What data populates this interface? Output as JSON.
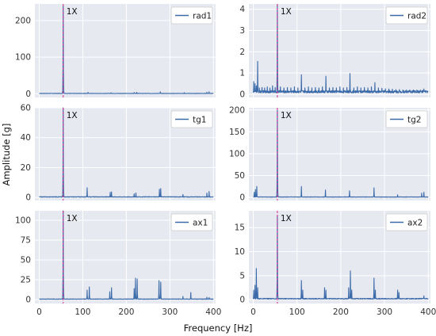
{
  "chart_data": {
    "type": "line",
    "ylabel": "Amplitude [g]",
    "xlabel": "Frequency [Hz]",
    "xlim": [
      -10,
      405
    ],
    "xticks": [
      0,
      100,
      200,
      300,
      400
    ],
    "marker": {
      "label": "1X",
      "x": 55,
      "color": "#d62b8a"
    },
    "line_color": "#3b6aa9",
    "grid": true,
    "legend_position": "top-right",
    "panels": [
      {
        "name": "rad1",
        "ylim": [
          -10,
          245
        ],
        "yticks": [
          0,
          100,
          200
        ],
        "baseline": 1.0,
        "peaks": [
          [
            55,
            240
          ],
          [
            112,
            4
          ],
          [
            165,
            3
          ],
          [
            218,
            3.5
          ],
          [
            224,
            4
          ],
          [
            278,
            5.5
          ],
          [
            333,
            3
          ],
          [
            385,
            4.5
          ],
          [
            390,
            5.5
          ]
        ]
      },
      {
        "name": "rad2",
        "ylim": [
          -0.15,
          4.25
        ],
        "yticks": [
          0,
          1,
          2,
          3,
          4
        ],
        "baseline": 0.12,
        "peaks": [
          [
            1,
            0.6
          ],
          [
            4,
            0.5
          ],
          [
            7,
            0.4
          ],
          [
            10,
            1.55
          ],
          [
            14,
            0.3
          ],
          [
            20,
            0.32
          ],
          [
            26,
            0.3
          ],
          [
            32,
            0.35
          ],
          [
            38,
            0.3
          ],
          [
            44,
            0.4
          ],
          [
            50,
            0.32
          ],
          [
            55,
            4.2
          ],
          [
            62,
            0.35
          ],
          [
            70,
            0.3
          ],
          [
            78,
            0.32
          ],
          [
            86,
            0.3
          ],
          [
            94,
            0.35
          ],
          [
            102,
            0.3
          ],
          [
            110,
            0.92
          ],
          [
            118,
            0.3
          ],
          [
            126,
            0.35
          ],
          [
            134,
            0.3
          ],
          [
            142,
            0.32
          ],
          [
            150,
            0.3
          ],
          [
            158,
            0.35
          ],
          [
            166,
            0.85
          ],
          [
            174,
            0.3
          ],
          [
            182,
            0.32
          ],
          [
            190,
            0.3
          ],
          [
            198,
            0.35
          ],
          [
            206,
            0.3
          ],
          [
            214,
            0.32
          ],
          [
            221,
            0.98
          ],
          [
            230,
            0.3
          ],
          [
            238,
            0.35
          ],
          [
            246,
            0.3
          ],
          [
            254,
            0.32
          ],
          [
            262,
            0.3
          ],
          [
            270,
            0.35
          ],
          [
            278,
            0.55
          ],
          [
            286,
            0.3
          ],
          [
            294,
            0.28
          ],
          [
            302,
            0.26
          ],
          [
            310,
            0.25
          ],
          [
            318,
            0.24
          ],
          [
            326,
            0.22
          ],
          [
            334,
            0.22
          ],
          [
            342,
            0.2
          ],
          [
            350,
            0.2
          ],
          [
            358,
            0.2
          ],
          [
            366,
            0.2
          ],
          [
            374,
            0.2
          ],
          [
            382,
            0.2
          ],
          [
            390,
            0.25
          ],
          [
            396,
            0.15
          ]
        ]
      },
      {
        "name": "tg1",
        "ylim": [
          -2,
          60
        ],
        "yticks": [
          0,
          20,
          40,
          60
        ],
        "baseline": 0.4,
        "peaks": [
          [
            55,
            60
          ],
          [
            110,
            6.5
          ],
          [
            163,
            3.5
          ],
          [
            166,
            3.8
          ],
          [
            218,
            2.5
          ],
          [
            222,
            3
          ],
          [
            276,
            5.5
          ],
          [
            279,
            6
          ],
          [
            330,
            2
          ],
          [
            385,
            3
          ],
          [
            390,
            4
          ]
        ]
      },
      {
        "name": "tg2",
        "ylim": [
          -7,
          205
        ],
        "yticks": [
          0,
          50,
          100,
          150,
          200
        ],
        "baseline": 1.0,
        "peaks": [
          [
            2,
            12
          ],
          [
            5,
            18
          ],
          [
            8,
            25
          ],
          [
            55,
            200
          ],
          [
            110,
            25
          ],
          [
            165,
            17
          ],
          [
            220,
            15
          ],
          [
            276,
            22
          ],
          [
            330,
            6
          ],
          [
            385,
            10
          ],
          [
            390,
            12
          ]
        ]
      },
      {
        "name": "ax1",
        "ylim": [
          -5,
          112
        ],
        "yticks": [
          0,
          25,
          50,
          75,
          100
        ],
        "baseline": 0.6,
        "peaks": [
          [
            55,
            112
          ],
          [
            110,
            12
          ],
          [
            115,
            16
          ],
          [
            162,
            10
          ],
          [
            166,
            15
          ],
          [
            218,
            14
          ],
          [
            221,
            27
          ],
          [
            225,
            26
          ],
          [
            275,
            24
          ],
          [
            279,
            22
          ],
          [
            330,
            4
          ],
          [
            348,
            9
          ],
          [
            385,
            3
          ],
          [
            390,
            2.5
          ]
        ]
      },
      {
        "name": "ax2",
        "ylim": [
          -0.8,
          18.5
        ],
        "yticks": [
          0,
          5,
          10,
          15
        ],
        "baseline": 0.2,
        "peaks": [
          [
            1,
            2
          ],
          [
            4,
            3
          ],
          [
            7,
            6.5
          ],
          [
            10,
            2.5
          ],
          [
            55,
            17.5
          ],
          [
            110,
            4
          ],
          [
            113,
            2
          ],
          [
            163,
            2.5
          ],
          [
            166,
            2
          ],
          [
            218,
            2.5
          ],
          [
            222,
            6
          ],
          [
            225,
            2
          ],
          [
            276,
            4.5
          ],
          [
            279,
            2
          ],
          [
            330,
            2
          ],
          [
            333,
            1.5
          ],
          [
            390,
            0.8
          ]
        ]
      }
    ]
  }
}
